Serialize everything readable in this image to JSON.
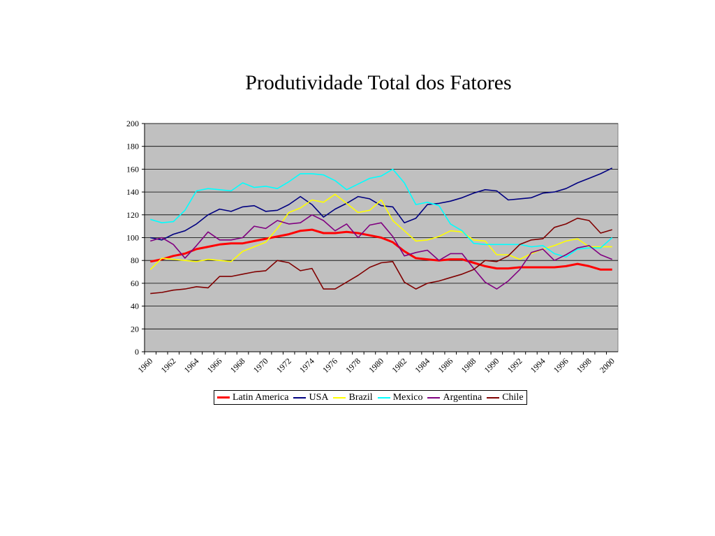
{
  "chart_data": {
    "type": "line",
    "title": "Produtividade Total dos Fatores",
    "xlabel": "",
    "ylabel": "",
    "ylim": [
      0,
      200
    ],
    "yticks": [
      0,
      20,
      40,
      60,
      80,
      100,
      120,
      140,
      160,
      180,
      200
    ],
    "xticks": [
      "1960",
      "1962",
      "1964",
      "1966",
      "1968",
      "1970",
      "1972",
      "1974",
      "1976",
      "1978",
      "1980",
      "1982",
      "1984",
      "1986",
      "1988",
      "1990",
      "1992",
      "1994",
      "1996",
      "1998",
      "2000"
    ],
    "x": [
      1960,
      1961,
      1962,
      1963,
      1964,
      1965,
      1966,
      1967,
      1968,
      1969,
      1970,
      1971,
      1972,
      1973,
      1974,
      1975,
      1976,
      1977,
      1978,
      1979,
      1980,
      1981,
      1982,
      1983,
      1984,
      1985,
      1986,
      1987,
      1988,
      1989,
      1990,
      1991,
      1992,
      1993,
      1994,
      1995,
      1996,
      1997,
      1998,
      1999,
      2000
    ],
    "grid": true,
    "legend_position": "bottom",
    "plot_background": "#c0c0c0",
    "series": [
      {
        "name": "Latin America",
        "color": "#ff0000",
        "width": 3,
        "values": [
          79,
          81,
          84,
          86,
          90,
          92,
          94,
          95,
          95,
          97,
          99,
          101,
          103,
          106,
          107,
          104,
          104,
          105,
          104,
          102,
          100,
          96,
          88,
          82,
          81,
          80,
          81,
          81,
          78,
          75,
          73,
          73,
          74,
          74,
          74,
          74,
          75,
          77,
          75,
          72,
          72
        ]
      },
      {
        "name": "USA",
        "color": "#000080",
        "width": 1.6,
        "values": [
          100,
          98,
          103,
          106,
          112,
          120,
          125,
          123,
          127,
          128,
          123,
          124,
          129,
          136,
          129,
          118,
          125,
          130,
          136,
          134,
          128,
          127,
          113,
          117,
          129,
          130,
          132,
          135,
          139,
          142,
          141,
          133,
          134,
          135,
          139,
          140,
          143,
          148,
          152,
          156,
          161
        ]
      },
      {
        "name": "Brazil",
        "color": "#ffff00",
        "width": 1.6,
        "values": [
          72,
          82,
          81,
          80,
          79,
          81,
          80,
          79,
          88,
          92,
          96,
          108,
          122,
          126,
          133,
          131,
          138,
          130,
          122,
          124,
          133,
          115,
          106,
          97,
          98,
          101,
          106,
          105,
          98,
          97,
          85,
          85,
          81,
          86,
          90,
          93,
          97,
          99,
          92,
          92,
          92
        ]
      },
      {
        "name": "Mexico",
        "color": "#00ffff",
        "width": 1.6,
        "values": [
          116,
          113,
          114,
          124,
          141,
          143,
          142,
          141,
          148,
          144,
          145,
          143,
          149,
          156,
          156,
          155,
          150,
          142,
          147,
          152,
          154,
          160,
          148,
          129,
          131,
          128,
          112,
          106,
          95,
          94,
          94,
          94,
          94,
          92,
          93,
          86,
          83,
          90,
          91,
          91,
          100
        ]
      },
      {
        "name": "Argentina",
        "color": "#800080",
        "width": 1.6,
        "values": [
          97,
          100,
          94,
          82,
          93,
          105,
          98,
          98,
          100,
          110,
          108,
          115,
          112,
          113,
          120,
          115,
          106,
          112,
          100,
          111,
          113,
          101,
          84,
          87,
          89,
          80,
          86,
          86,
          73,
          61,
          55,
          62,
          72,
          87,
          90,
          80,
          85,
          91,
          93,
          85,
          81
        ]
      },
      {
        "name": "Chile",
        "color": "#800000",
        "width": 1.6,
        "values": [
          51,
          52,
          54,
          55,
          57,
          56,
          66,
          66,
          68,
          70,
          71,
          80,
          78,
          71,
          73,
          55,
          55,
          61,
          67,
          74,
          78,
          79,
          61,
          55,
          60,
          62,
          65,
          68,
          72,
          80,
          79,
          84,
          94,
          98,
          99,
          109,
          112,
          117,
          115,
          104,
          107
        ]
      }
    ]
  }
}
